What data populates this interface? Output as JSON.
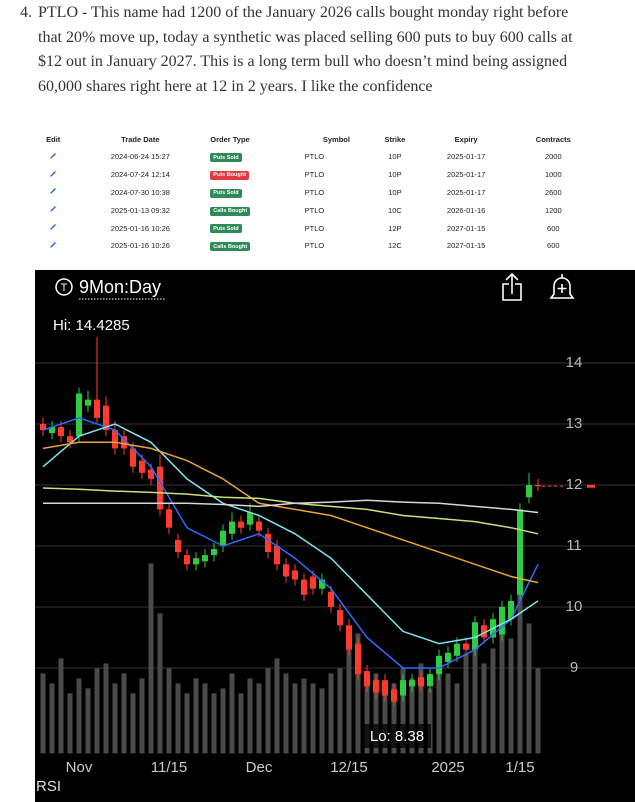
{
  "post": {
    "number": "4.",
    "lines": [
      "PTLO - This name had 1200 of the January 2026 calls bought monday right before",
      "that 20% move up, today a synthetic was placed selling 600 puts to buy 600 calls at",
      "$12 out in January 2027. This is a long term bull who doesn’t mind being assigned",
      "60,000 shares right here at 12 in 2 years. I like the confidence"
    ]
  },
  "table": {
    "headers": [
      "Edit",
      "Trade Date",
      "Order Type",
      "Symbol",
      "Strike",
      "Expiry",
      "Contracts"
    ],
    "badge_colors": {
      "Puts Sold": "#2e8b57",
      "Puts Bought": "#e23b3f",
      "Calls Bought": "#2e8b57"
    },
    "rows": [
      [
        "2024-06-24 15:27",
        "Puts Sold",
        "PTLO",
        "10P",
        "2025-01-17",
        "2000"
      ],
      [
        "2024-07-24 12:14",
        "Puts Bought",
        "PTLO",
        "10P",
        "2025-01-17",
        "1000"
      ],
      [
        "2024-07-30 10:38",
        "Puts Sold",
        "PTLO",
        "10P",
        "2025-01-17",
        "2600"
      ],
      [
        "2025-01-13 09:32",
        "Calls Bought",
        "PTLO",
        "10C",
        "2026-01-16",
        "1200"
      ],
      [
        "2025-01-16 10:26",
        "Puts Sold",
        "PTLO",
        "12P",
        "2027-01-15",
        "600"
      ],
      [
        "2025-01-16 10:26",
        "Calls Bought",
        "PTLO",
        "12C",
        "2027-01-15",
        "600"
      ]
    ]
  },
  "chart_data": {
    "type": "candlestick",
    "title": "9Mon:Day",
    "annotations": [
      "Hi: 14.4285",
      "Lo: 8.38"
    ],
    "footer": "RSI",
    "up_color": "#2ecc40",
    "down_color": "#ff3b30",
    "volume_color": "#4a4a4a",
    "grid": true,
    "categories": [
      null,
      null,
      null,
      null,
      "Nov",
      null,
      null,
      null,
      null,
      null,
      null,
      null,
      null,
      null,
      "11/15",
      null,
      null,
      null,
      null,
      null,
      null,
      null,
      null,
      null,
      "Dec",
      null,
      null,
      null,
      null,
      null,
      null,
      null,
      null,
      null,
      "12/15",
      null,
      null,
      null,
      null,
      null,
      null,
      null,
      null,
      null,
      null,
      "2025",
      null,
      null,
      null,
      null,
      null,
      null,
      null,
      "1/15",
      null,
      null
    ],
    "open": [
      13.0,
      12.85,
      12.95,
      12.8,
      12.8,
      13.3,
      13.4,
      13.3,
      12.9,
      12.8,
      12.6,
      12.4,
      12.25,
      12.3,
      11.6,
      11.1,
      10.85,
      10.7,
      10.75,
      10.85,
      11.0,
      11.2,
      11.4,
      11.35,
      11.4,
      11.2,
      11.0,
      10.7,
      10.6,
      10.45,
      10.5,
      10.3,
      10.25,
      9.95,
      9.7,
      9.4,
      8.95,
      8.8,
      8.8,
      8.65,
      8.55,
      8.7,
      8.85,
      8.7,
      8.9,
      9.1,
      9.2,
      9.4,
      9.3,
      9.7,
      9.5,
      9.55,
      9.8,
      10.2,
      11.8,
      12.0
    ],
    "high": [
      13.1,
      13.05,
      13.05,
      12.9,
      13.6,
      13.55,
      14.43,
      13.45,
      13.05,
      12.9,
      12.7,
      12.5,
      12.35,
      12.5,
      11.7,
      11.2,
      10.95,
      10.9,
      10.95,
      11.05,
      11.35,
      11.55,
      11.5,
      11.7,
      11.5,
      11.3,
      11.1,
      10.8,
      10.7,
      10.55,
      10.6,
      10.55,
      10.35,
      10.05,
      9.8,
      9.5,
      9.05,
      8.9,
      8.9,
      8.75,
      8.9,
      8.9,
      8.95,
      9.0,
      9.3,
      9.35,
      9.5,
      9.5,
      9.85,
      9.8,
      9.9,
      10.1,
      10.2,
      11.7,
      12.2,
      12.1
    ],
    "low": [
      12.8,
      12.75,
      12.7,
      12.6,
      12.7,
      13.2,
      13.0,
      12.8,
      12.5,
      12.5,
      12.2,
      12.1,
      12.0,
      11.5,
      11.2,
      10.8,
      10.6,
      10.6,
      10.65,
      10.75,
      10.9,
      11.1,
      11.2,
      11.25,
      11.15,
      10.8,
      10.6,
      10.4,
      10.35,
      10.1,
      10.2,
      10.2,
      9.9,
      9.6,
      9.2,
      8.8,
      8.6,
      8.5,
      8.45,
      8.38,
      8.45,
      8.6,
      8.6,
      8.6,
      8.8,
      9.0,
      9.1,
      9.2,
      9.2,
      9.4,
      9.4,
      9.45,
      9.7,
      10.1,
      11.7,
      11.9
    ],
    "close": [
      12.9,
      12.95,
      12.8,
      12.7,
      13.5,
      13.4,
      13.1,
      12.9,
      12.6,
      12.6,
      12.3,
      12.2,
      12.1,
      11.6,
      11.3,
      10.9,
      10.7,
      10.8,
      10.85,
      10.95,
      11.25,
      11.4,
      11.3,
      11.55,
      11.25,
      10.9,
      10.7,
      10.5,
      10.45,
      10.2,
      10.3,
      10.45,
      10.0,
      9.7,
      9.3,
      8.9,
      8.7,
      8.6,
      8.55,
      8.45,
      8.8,
      8.8,
      8.7,
      8.9,
      9.2,
      9.25,
      9.4,
      9.3,
      9.75,
      9.5,
      9.8,
      10.0,
      10.1,
      11.6,
      12.0,
      11.98
    ],
    "volume": [
      80,
      70,
      95,
      60,
      75,
      65,
      85,
      90,
      70,
      80,
      60,
      75,
      190,
      140,
      85,
      70,
      60,
      75,
      70,
      60,
      65,
      80,
      60,
      75,
      70,
      85,
      95,
      80,
      70,
      75,
      70,
      65,
      80,
      85,
      110,
      120,
      75,
      80,
      60,
      70,
      85,
      75,
      90,
      65,
      95,
      80,
      70,
      100,
      110,
      90,
      105,
      120,
      115,
      175,
      130,
      85
    ],
    "series": [
      {
        "color": "#2f6bff",
        "x": [
          0,
          4,
          8,
          12,
          16,
          20,
          24,
          28,
          32,
          36,
          40,
          44,
          48,
          52,
          55
        ],
        "values": [
          12.9,
          13.1,
          12.9,
          12.3,
          11.3,
          11.0,
          11.2,
          10.8,
          10.3,
          9.5,
          9.0,
          9.0,
          9.3,
          9.8,
          10.7
        ]
      },
      {
        "color": "#7fe3f0",
        "x": [
          0,
          4,
          8,
          12,
          16,
          20,
          24,
          28,
          32,
          36,
          40,
          44,
          48,
          52,
          55
        ],
        "values": [
          12.3,
          12.8,
          13.0,
          12.7,
          12.1,
          11.7,
          11.5,
          11.2,
          10.8,
          10.2,
          9.6,
          9.4,
          9.5,
          9.8,
          10.1
        ]
      },
      {
        "color": "#e8a33a",
        "x": [
          0,
          4,
          8,
          12,
          16,
          20,
          24,
          28,
          32,
          36,
          40,
          44,
          48,
          52,
          55
        ],
        "values": [
          12.6,
          12.7,
          12.7,
          12.6,
          12.4,
          12.1,
          11.7,
          11.6,
          11.5,
          11.3,
          11.1,
          10.9,
          10.7,
          10.5,
          10.4
        ]
      },
      {
        "color": "#c9e27a",
        "x": [
          0,
          4,
          8,
          12,
          16,
          20,
          24,
          28,
          32,
          36,
          40,
          44,
          48,
          52,
          55
        ],
        "values": [
          11.95,
          11.93,
          11.9,
          11.88,
          11.85,
          11.8,
          11.78,
          11.7,
          11.65,
          11.6,
          11.5,
          11.45,
          11.4,
          11.3,
          11.2
        ]
      },
      {
        "color": "#d8d8d8",
        "x": [
          0,
          4,
          8,
          12,
          16,
          20,
          24,
          28,
          32,
          36,
          40,
          44,
          48,
          52,
          55
        ],
        "values": [
          11.7,
          11.7,
          11.7,
          11.7,
          11.7,
          11.68,
          11.65,
          11.7,
          11.72,
          11.75,
          11.72,
          11.7,
          11.65,
          11.6,
          11.55
        ]
      }
    ],
    "ylim": [
      7.6,
      15.5
    ],
    "yticks": [
      9,
      10,
      11,
      12,
      13,
      14
    ]
  }
}
